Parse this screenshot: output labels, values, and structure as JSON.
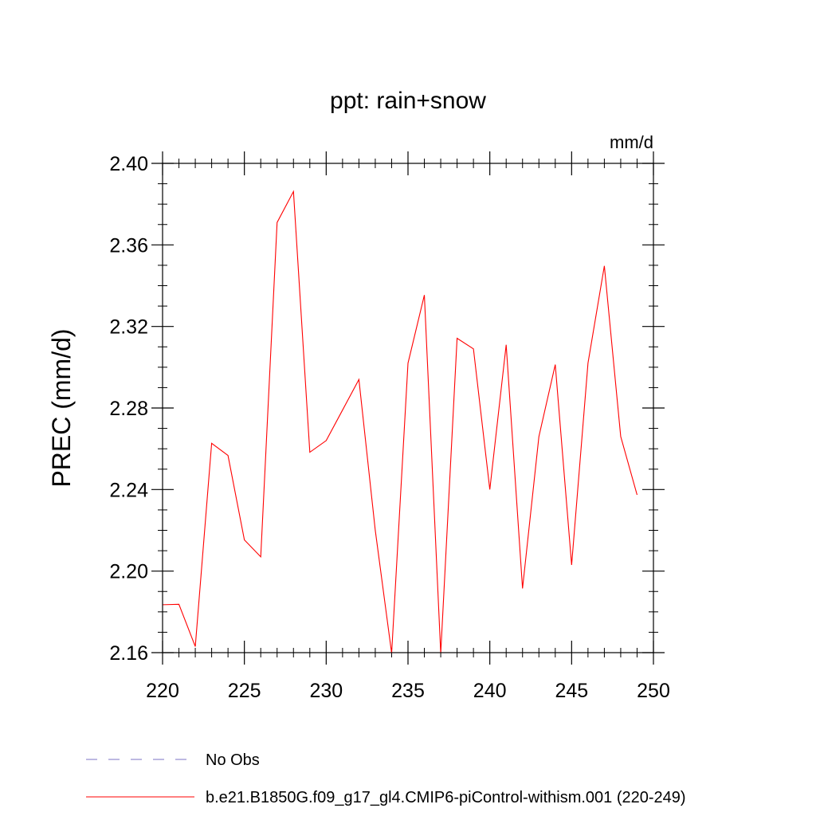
{
  "chart_data": {
    "type": "line",
    "title": "ppt: rain+snow",
    "units_label": "mm/d",
    "xlabel": "",
    "ylabel": "PREC  (mm/d)",
    "xlim": [
      220,
      250
    ],
    "ylim": [
      2.16,
      2.4
    ],
    "x_ticks": [
      "220",
      "225",
      "230",
      "235",
      "240",
      "245",
      "250"
    ],
    "y_ticks": [
      "2.16",
      "2.20",
      "2.24",
      "2.28",
      "2.32",
      "2.36",
      "2.40"
    ],
    "x_minor_step": 1,
    "y_minor_step": 0.01,
    "grid": false,
    "series": [
      {
        "name": "b.e21.B1850G.f09_g17_gl4.CMIP6-piControl-withism.001 (220-249)",
        "color": "#ff0000",
        "x": [
          220,
          221,
          222,
          223,
          224,
          225,
          226,
          227,
          228,
          229,
          230,
          231,
          232,
          233,
          234,
          235,
          236,
          237,
          238,
          239,
          240,
          241,
          242,
          243,
          244,
          245,
          246,
          247,
          248,
          249
        ],
        "y": [
          2.1835,
          2.1837,
          2.163,
          2.2627,
          2.2567,
          2.2153,
          2.207,
          2.371,
          2.3862,
          2.2583,
          2.264,
          2.279,
          2.294,
          2.22,
          2.1597,
          2.302,
          2.3354,
          2.1597,
          2.3142,
          2.309,
          2.24,
          2.311,
          2.1915,
          2.266,
          2.3013,
          2.203,
          2.302,
          2.3497,
          2.266,
          2.2374
        ]
      }
    ],
    "legend": {
      "placement": "bottom-left",
      "entries": [
        {
          "label": "No Obs",
          "color": "#7b73c4",
          "style": "dashed"
        },
        {
          "label": "b.e21.B1850G.f09_g17_gl4.CMIP6-piControl-withism.001 (220-249)",
          "color": "#ff0000",
          "style": "solid"
        }
      ]
    }
  }
}
